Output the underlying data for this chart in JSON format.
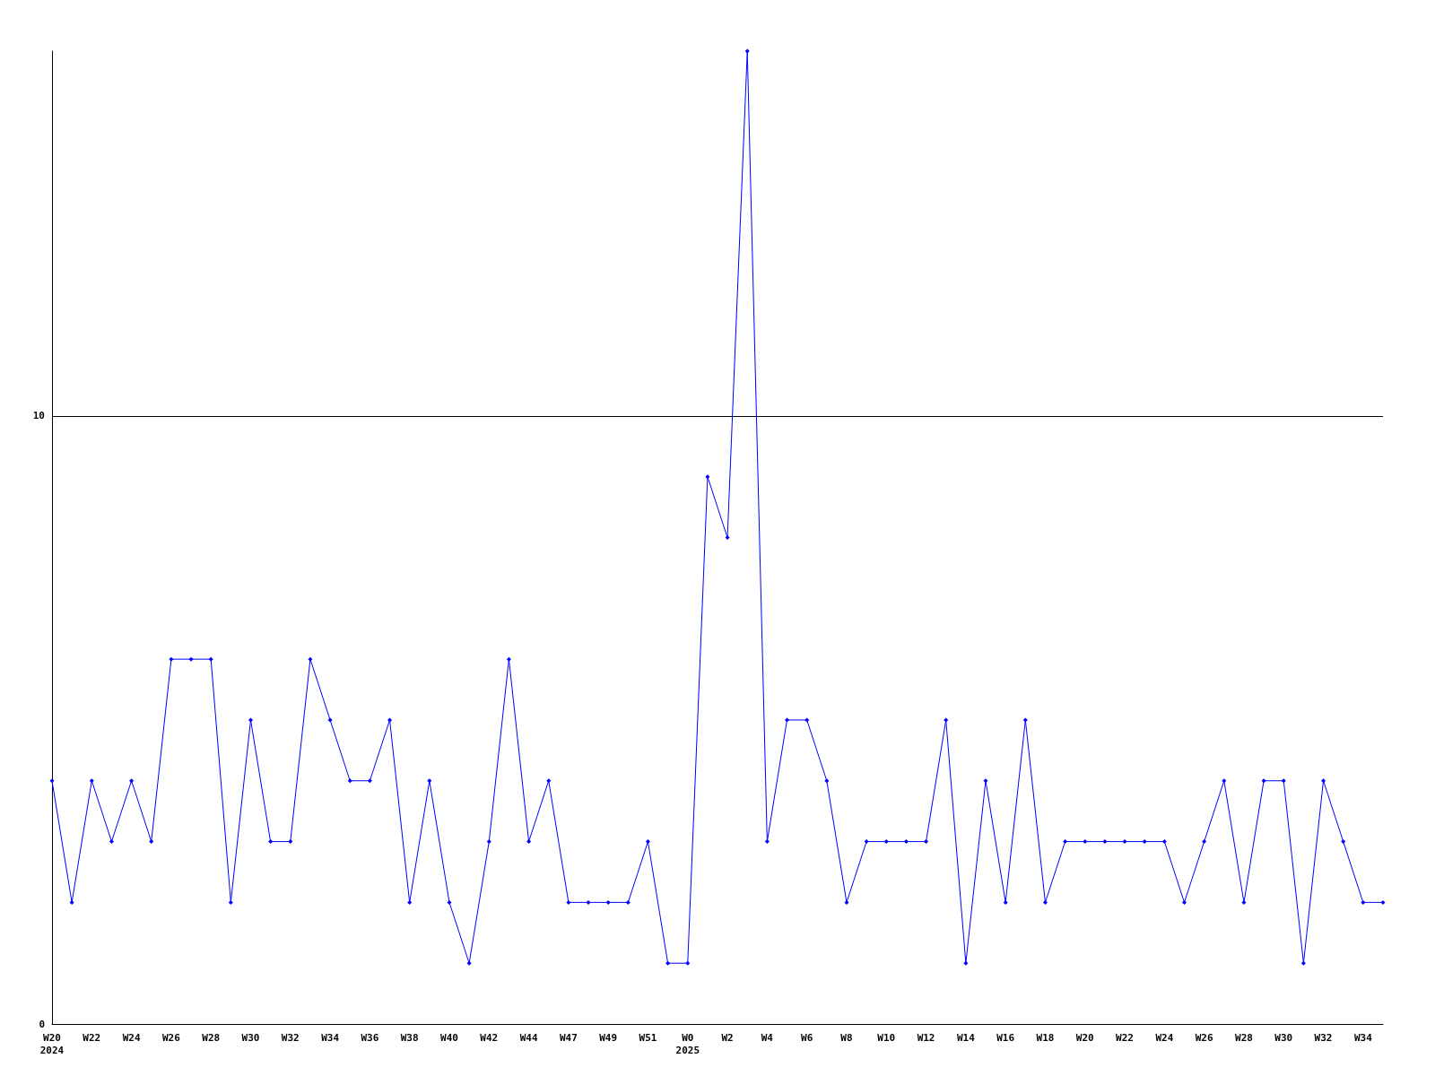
{
  "chart_data": {
    "type": "line",
    "categories": [
      "W20\n2024",
      null,
      "W22",
      null,
      "W24",
      null,
      "W26",
      null,
      "W28",
      null,
      "W30",
      null,
      "W32",
      null,
      "W34",
      null,
      "W36",
      null,
      "W38",
      null,
      "W40",
      null,
      "W42",
      null,
      "W44",
      null,
      "W47",
      null,
      "W49",
      null,
      "W51",
      null,
      "W0\n2025",
      null,
      "W2",
      null,
      "W4",
      null,
      "W6",
      null,
      "W8",
      null,
      "W10",
      null,
      "W12",
      null,
      "W14",
      null,
      "W16",
      null,
      "W18",
      null,
      "W20",
      null,
      "W22",
      null,
      "W24",
      null,
      "W26",
      null,
      "W28",
      null,
      "W30",
      null,
      "W32",
      null,
      "W34",
      null
    ],
    "series": [
      {
        "color": "#0000ff",
        "values": [
          4,
          2,
          4,
          3,
          4,
          3,
          6,
          6,
          6,
          2,
          5,
          3,
          3,
          6,
          5,
          4,
          4,
          5,
          2,
          4,
          2,
          1,
          3,
          6,
          3,
          4,
          2,
          2,
          2,
          2,
          3,
          1,
          1,
          9,
          8,
          16,
          3,
          5,
          5,
          4,
          2,
          3,
          3,
          3,
          3,
          5,
          1,
          4,
          2,
          5,
          2,
          3,
          3,
          3,
          3,
          3,
          3,
          2,
          3,
          4,
          2,
          4,
          4,
          1,
          4,
          3,
          2,
          2
        ]
      }
    ],
    "ylim": [
      0,
      16
    ],
    "yticks": [
      0,
      10
    ],
    "grid": "y",
    "marker": "diamond",
    "line_style": "solid"
  }
}
